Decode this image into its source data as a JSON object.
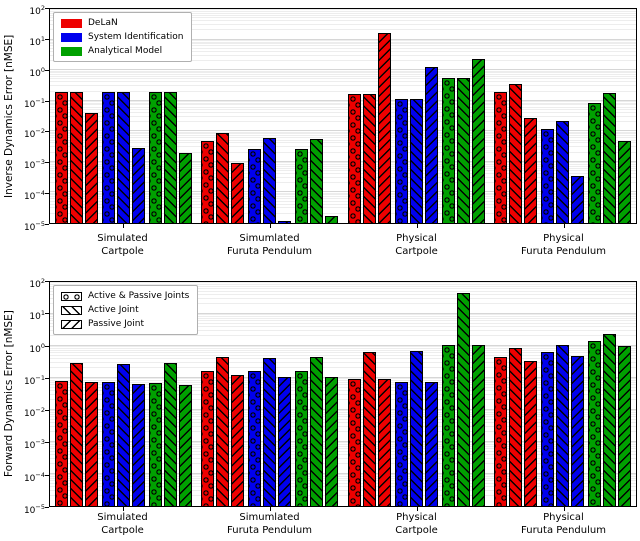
{
  "figure": {
    "kind": "matplotlib-style stacked panels",
    "background": "#ffffff",
    "grid": {
      "major_color": "#d6d6d6",
      "minor_color": "#ededed"
    }
  },
  "chart_data": [
    {
      "type": "bar",
      "title": "",
      "ylabel": "Inverse Dynamics Error [nMSE]",
      "yscale": "log",
      "ylim": [
        1e-05,
        100
      ],
      "ytick_exponents": [
        2,
        1,
        0,
        -1,
        -2,
        -3,
        -4,
        -5
      ],
      "grid": true,
      "legend_type": "series",
      "legend_position": "top-left",
      "categories": [
        [
          "Simulated",
          "Cartpole"
        ],
        [
          "Simumlated",
          "Furuta Pendulum"
        ],
        [
          "Physical",
          "Cartpole"
        ],
        [
          "Physical",
          "Furuta Pendulum"
        ]
      ],
      "hatches": [
        "circle",
        "backslash",
        "slash"
      ],
      "hatch_labels": [
        "Active & Passive Joints",
        "Active Joint",
        "Passive Joint"
      ],
      "series": [
        {
          "name": "DeLaN",
          "color": "#ee0000",
          "values": [
            [
              0.2,
              0.005,
              0.17,
              0.19
            ],
            [
              0.2,
              0.009,
              0.17,
              0.36
            ],
            [
              0.04,
              0.0009,
              17,
              0.027
            ]
          ]
        },
        {
          "name": "System Identification",
          "color": "#0000ee",
          "values": [
            [
              0.2,
              0.0027,
              0.11,
              0.012
            ],
            [
              0.2,
              0.006,
              0.11,
              0.022
            ],
            [
              0.0028,
              1.2e-05,
              1.3,
              0.00035
            ]
          ]
        },
        {
          "name": "Analytical Model",
          "color": "#00a000",
          "values": [
            [
              0.2,
              0.0026,
              0.55,
              0.084
            ],
            [
              0.2,
              0.0058,
              0.55,
              0.18
            ],
            [
              0.002,
              1.7e-05,
              2.4,
              0.005
            ]
          ]
        }
      ]
    },
    {
      "type": "bar",
      "title": "",
      "ylabel": "Forward Dynamics Error [nMSE]",
      "yscale": "log",
      "ylim": [
        1e-05,
        100
      ],
      "ytick_exponents": [
        2,
        1,
        0,
        -1,
        -2,
        -3,
        -4,
        -5
      ],
      "grid": true,
      "legend_type": "hatch",
      "legend_position": "top-left",
      "categories": [
        [
          "Simulated",
          "Cartpole"
        ],
        [
          "Simumlated",
          "Furuta Pendulum"
        ],
        [
          "Physical",
          "Cartpole"
        ],
        [
          "Physical",
          "Furuta Pendulum"
        ]
      ],
      "hatches": [
        "circle",
        "backslash",
        "slash"
      ],
      "hatch_labels": [
        "Active & Passive Joints",
        "Active Joint",
        "Passive Joint"
      ],
      "series": [
        {
          "name": "DeLaN",
          "color": "#ee0000",
          "values": [
            [
              0.08,
              0.17,
              0.095,
              0.45
            ],
            [
              0.3,
              0.45,
              0.66,
              0.85
            ],
            [
              0.075,
              0.125,
              0.095,
              0.35
            ]
          ]
        },
        {
          "name": "System Identification",
          "color": "#0000ee",
          "values": [
            [
              0.073,
              0.16,
              0.075,
              0.63
            ],
            [
              0.28,
              0.42,
              0.72,
              1.1
            ],
            [
              0.063,
              0.11,
              0.075,
              0.48
            ]
          ]
        },
        {
          "name": "Analytical Model",
          "color": "#00a000",
          "values": [
            [
              0.072,
              0.17,
              1.05,
              1.4
            ],
            [
              0.29,
              0.44,
              45,
              2.3
            ],
            [
              0.06,
              0.11,
              1.1,
              1.0
            ]
          ]
        }
      ]
    }
  ]
}
